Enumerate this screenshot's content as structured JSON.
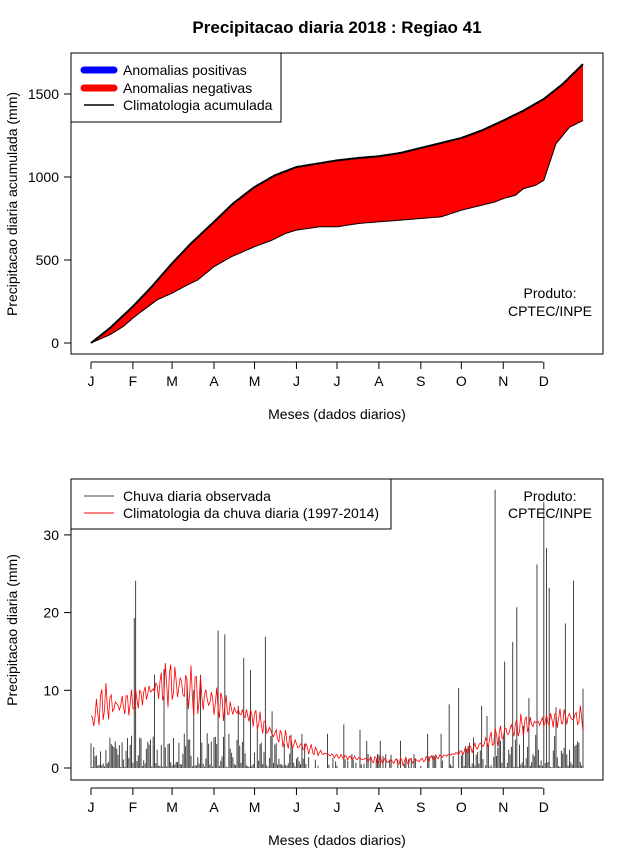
{
  "chart_data": [
    {
      "type": "area",
      "title": "Precipitacao diaria 2018 : Regiao 41",
      "xlabel": "Meses (dados diarios)",
      "ylabel": "Precipitacao diaria acumulada (mm)",
      "x_tick_labels": [
        "J",
        "F",
        "M",
        "A",
        "M",
        "J",
        "J",
        "A",
        "S",
        "O",
        "N",
        "D"
      ],
      "x_tick_days": [
        1,
        32,
        61,
        92,
        122,
        153,
        183,
        214,
        245,
        275,
        306,
        336
      ],
      "xlim": [
        1,
        365
      ],
      "ylim": [
        0,
        1700
      ],
      "y_ticks": [
        0,
        500,
        1000,
        1500
      ],
      "legend_position": "top-left",
      "legend": [
        {
          "label": "Anomalias positivas",
          "color": "#0000ff"
        },
        {
          "label": "Anomalias negativas",
          "color": "#ff0000"
        },
        {
          "label": "Climatologia acumulada",
          "color": "#000000"
        }
      ],
      "annotation": [
        "Produto:",
        "CPTEC/INPE"
      ],
      "climatology_cumulative": {
        "day": [
          1,
          15,
          32,
          46,
          61,
          75,
          92,
          106,
          122,
          137,
          153,
          168,
          183,
          199,
          214,
          230,
          245,
          260,
          275,
          290,
          306,
          321,
          336,
          350,
          365
        ],
        "value": [
          0,
          90,
          220,
          340,
          480,
          600,
          730,
          840,
          940,
          1010,
          1060,
          1080,
          1100,
          1115,
          1125,
          1145,
          1175,
          1205,
          1235,
          1280,
          1340,
          1400,
          1470,
          1560,
          1680
        ]
      },
      "observed_cumulative": {
        "day": [
          1,
          15,
          25,
          32,
          40,
          50,
          61,
          70,
          80,
          92,
          105,
          122,
          135,
          145,
          153,
          170,
          183,
          199,
          214,
          230,
          245,
          260,
          275,
          290,
          300,
          306,
          315,
          321,
          330,
          336,
          345,
          355,
          365
        ],
        "value": [
          0,
          50,
          100,
          150,
          200,
          260,
          300,
          340,
          380,
          460,
          520,
          580,
          620,
          660,
          680,
          700,
          700,
          720,
          730,
          740,
          750,
          760,
          800,
          830,
          850,
          870,
          890,
          930,
          950,
          980,
          1200,
          1300,
          1340
        ]
      }
    },
    {
      "type": "bar",
      "title": "",
      "xlabel": "Meses (dados diarios)",
      "ylabel": "Precipitacao diaria (mm)",
      "x_tick_labels": [
        "J",
        "F",
        "M",
        "A",
        "M",
        "J",
        "J",
        "A",
        "S",
        "O",
        "N",
        "D"
      ],
      "x_tick_days": [
        1,
        32,
        61,
        92,
        122,
        153,
        183,
        214,
        245,
        275,
        306,
        336
      ],
      "xlim": [
        1,
        365
      ],
      "ylim": [
        0,
        36
      ],
      "y_ticks": [
        0,
        10,
        20,
        30
      ],
      "legend_position": "top-left",
      "legend": [
        {
          "label": "Chuva diaria observada",
          "color": "#444444"
        },
        {
          "label": "Climatologia da chuva diaria (1997-2014)",
          "color": "#ff0000"
        }
      ],
      "annotation": [
        "Produto:",
        "CPTEC/INPE"
      ],
      "observed_daily_peaks": {
        "day": [
          33,
          34,
          48,
          55,
          72,
          77,
          82,
          95,
          100,
          110,
          114,
          119,
          124,
          130,
          135,
          176,
          188,
          200,
          205,
          215,
          230,
          250,
          260,
          266,
          273,
          290,
          294,
          300,
          307,
          313,
          316,
          321,
          325,
          331,
          336,
          338,
          340,
          345,
          352,
          358,
          365
        ],
        "value": [
          19.3,
          24.1,
          12.0,
          12.7,
          11.5,
          10.0,
          12.0,
          17.7,
          17.2,
          8.0,
          14.2,
          12.6,
          5.5,
          16.9,
          7.3,
          4.4,
          5.6,
          4.9,
          3.5,
          3.5,
          3.5,
          4.4,
          4.4,
          8.2,
          10.3,
          8.0,
          6.7,
          35.8,
          13.7,
          16.2,
          20.7,
          5.4,
          9.0,
          26.2,
          34.2,
          28.3,
          23.2,
          7.8,
          18.6,
          24.1,
          10.2
        ]
      },
      "climatology_daily": {
        "day": [
          1,
          10,
          20,
          32,
          45,
          61,
          75,
          92,
          105,
          122,
          135,
          153,
          170,
          183,
          200,
          214,
          230,
          245,
          260,
          275,
          290,
          306,
          320,
          336,
          350,
          365
        ],
        "value": [
          6.0,
          8.5,
          8.0,
          8.5,
          10.0,
          11.0,
          10.0,
          8.5,
          7.5,
          6.5,
          4.5,
          3.0,
          2.0,
          1.5,
          1.2,
          1.0,
          0.8,
          1.0,
          1.5,
          2.0,
          3.0,
          4.5,
          5.5,
          6.0,
          6.5,
          6.5
        ]
      }
    }
  ]
}
